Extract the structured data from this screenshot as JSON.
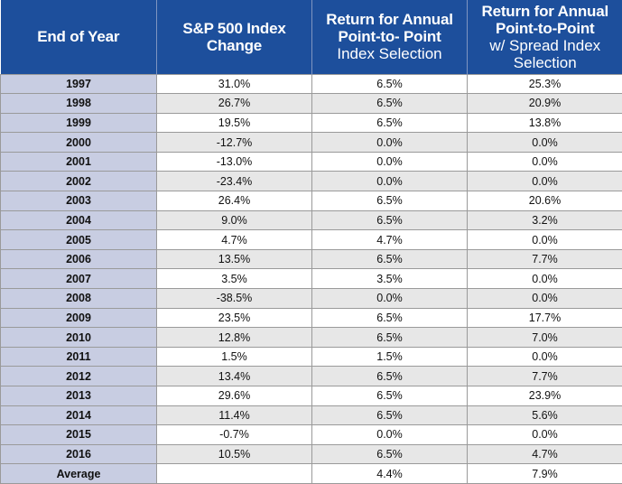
{
  "chart_data": {
    "type": "table",
    "columns": [
      {
        "line1": "End of Year",
        "line2": "",
        "line3": ""
      },
      {
        "line1": "S&P 500 Index",
        "line2": "Change",
        "line3": ""
      },
      {
        "line1": "Return for Annual",
        "line2": "Point-to- Point",
        "line3": "Index Selection"
      },
      {
        "line1": "Return for Annual",
        "line2": "Point-to-Point",
        "line3": "w/ Spread Index Selection"
      }
    ],
    "rows": [
      {
        "year": "1997",
        "sp500": "31.0%",
        "p2p": "6.5%",
        "spread": "25.3%"
      },
      {
        "year": "1998",
        "sp500": "26.7%",
        "p2p": "6.5%",
        "spread": "20.9%"
      },
      {
        "year": "1999",
        "sp500": "19.5%",
        "p2p": "6.5%",
        "spread": "13.8%"
      },
      {
        "year": "2000",
        "sp500": "-12.7%",
        "p2p": "0.0%",
        "spread": "0.0%"
      },
      {
        "year": "2001",
        "sp500": "-13.0%",
        "p2p": "0.0%",
        "spread": "0.0%"
      },
      {
        "year": "2002",
        "sp500": "-23.4%",
        "p2p": "0.0%",
        "spread": "0.0%"
      },
      {
        "year": "2003",
        "sp500": "26.4%",
        "p2p": "6.5%",
        "spread": "20.6%"
      },
      {
        "year": "2004",
        "sp500": "9.0%",
        "p2p": "6.5%",
        "spread": "3.2%"
      },
      {
        "year": "2005",
        "sp500": "4.7%",
        "p2p": "4.7%",
        "spread": "0.0%"
      },
      {
        "year": "2006",
        "sp500": "13.5%",
        "p2p": "6.5%",
        "spread": "7.7%"
      },
      {
        "year": "2007",
        "sp500": "3.5%",
        "p2p": "3.5%",
        "spread": "0.0%"
      },
      {
        "year": "2008",
        "sp500": "-38.5%",
        "p2p": "0.0%",
        "spread": "0.0%"
      },
      {
        "year": "2009",
        "sp500": "23.5%",
        "p2p": "6.5%",
        "spread": "17.7%"
      },
      {
        "year": "2010",
        "sp500": "12.8%",
        "p2p": "6.5%",
        "spread": "7.0%"
      },
      {
        "year": "2011",
        "sp500": "1.5%",
        "p2p": "1.5%",
        "spread": "0.0%"
      },
      {
        "year": "2012",
        "sp500": "13.4%",
        "p2p": "6.5%",
        "spread": "7.7%"
      },
      {
        "year": "2013",
        "sp500": "29.6%",
        "p2p": "6.5%",
        "spread": "23.9%"
      },
      {
        "year": "2014",
        "sp500": "11.4%",
        "p2p": "6.5%",
        "spread": "5.6%"
      },
      {
        "year": "2015",
        "sp500": "-0.7%",
        "p2p": "0.0%",
        "spread": "0.0%"
      },
      {
        "year": "2016",
        "sp500": "10.5%",
        "p2p": "6.5%",
        "spread": "4.7%"
      }
    ],
    "average": {
      "label": "Average",
      "sp500": "",
      "p2p": "4.4%",
      "spread": "7.9%"
    }
  },
  "colors": {
    "header_bg": "#1d4f9c",
    "year_col_bg": "#c8cde2",
    "stripe_bg": "#e7e7e7"
  }
}
